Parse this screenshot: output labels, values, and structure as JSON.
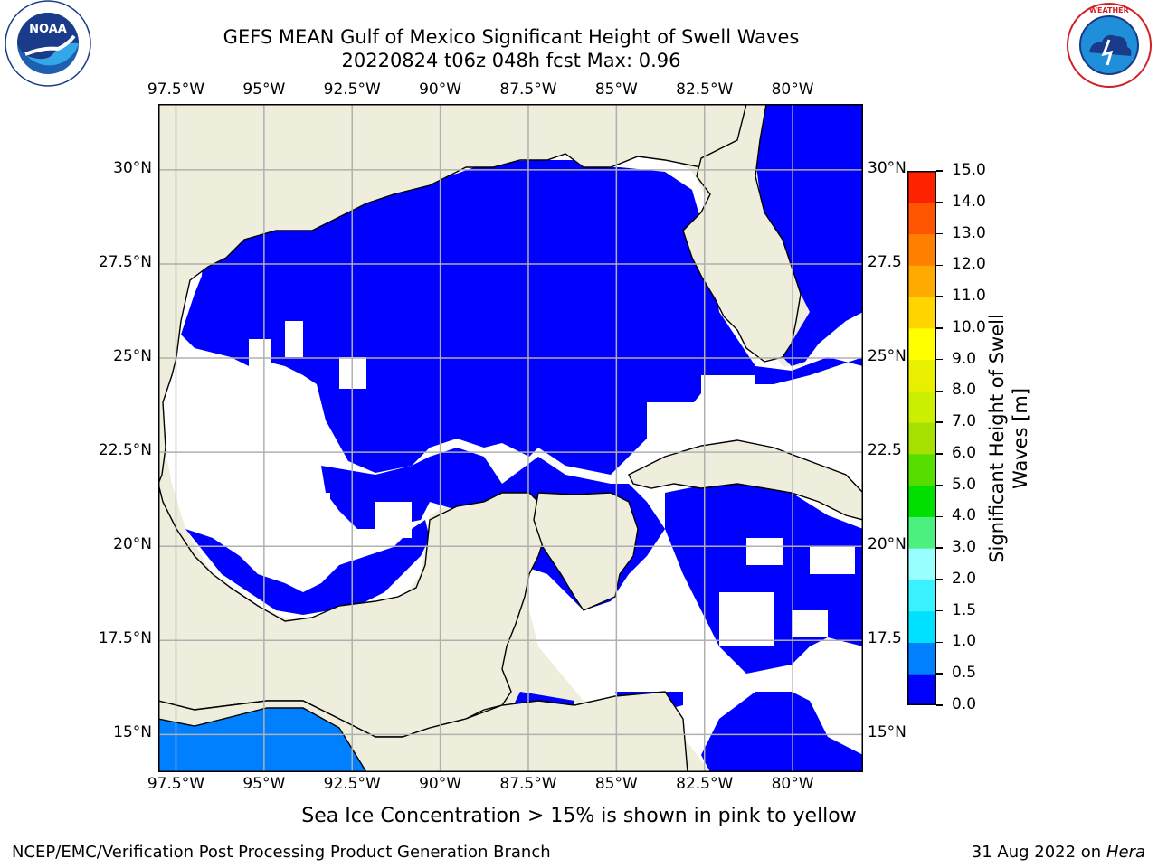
{
  "title_line1": "GEFS MEAN Gulf of Mexico Significant Height of Swell Waves",
  "title_line2": "20220824 t06z 048h fcst   Max: 0.96",
  "logos": {
    "left": {
      "text": "NOAA",
      "ring_text": "NATIONAL OCEANIC AND ATMOSPHERIC ADMINISTRATION · U.S. DEPARTMENT OF COMMERCE",
      "icon": "noaa-logo"
    },
    "right": {
      "ring_text": "NATIONAL WEATHER SERVICE",
      "icon": "nws-logo"
    }
  },
  "map": {
    "lon_ticks": [
      "97.5°W",
      "95°W",
      "92.5°W",
      "90°W",
      "87.5°W",
      "85°W",
      "82.5°W",
      "80°W"
    ],
    "lat_ticks_left": [
      "30°N",
      "27.5°N",
      "25°N",
      "22.5°N",
      "20°N",
      "17.5°N",
      "15°N"
    ],
    "lat_ticks_right": [
      "30°N",
      "27.5",
      "25°N",
      "22.5",
      "20°N",
      "17.5",
      "15°N"
    ],
    "lon_range": [
      -98,
      -78
    ],
    "lat_range": [
      14,
      31.75
    ],
    "colors": {
      "land": "#efeedc",
      "grid": "#b0b0b0",
      "coast": "#000000"
    }
  },
  "colorbar": {
    "label": "Significant Height of Swell Waves [m]",
    "label_line1": "Significant Height of Swell",
    "label_line2": "Waves [m]",
    "ticks": [
      "15.0",
      "14.0",
      "13.0",
      "12.0",
      "11.0",
      "10.0",
      "9.0",
      "8.0",
      "7.0",
      "6.0",
      "5.0",
      "4.0",
      "3.0",
      "2.0",
      "1.5",
      "1.0",
      "0.5",
      "0.0"
    ],
    "levels": [
      0.0,
      0.5,
      1.0,
      1.5,
      2.0,
      3.0,
      4.0,
      5.0,
      6.0,
      7.0,
      8.0,
      9.0,
      10.0,
      11.0,
      12.0,
      13.0,
      14.0,
      15.0
    ],
    "colors": [
      "#0000ff",
      "#0080ff",
      "#00e0ff",
      "#3af2ff",
      "#9affff",
      "#4bf07e",
      "#00e000",
      "#55dd00",
      "#a6e000",
      "#ccee00",
      "#e8f000",
      "#ffff00",
      "#ffd500",
      "#ffaa00",
      "#ff8000",
      "#ff5500",
      "#ff2200"
    ]
  },
  "note": "Sea Ice Concentration > 15% is shown in pink to yellow",
  "footer_left": "NCEP/EMC/Verification Post Processing Product Generation Branch",
  "footer_right_date": "31 Aug 2022 on",
  "footer_right_machine": "Hera"
}
